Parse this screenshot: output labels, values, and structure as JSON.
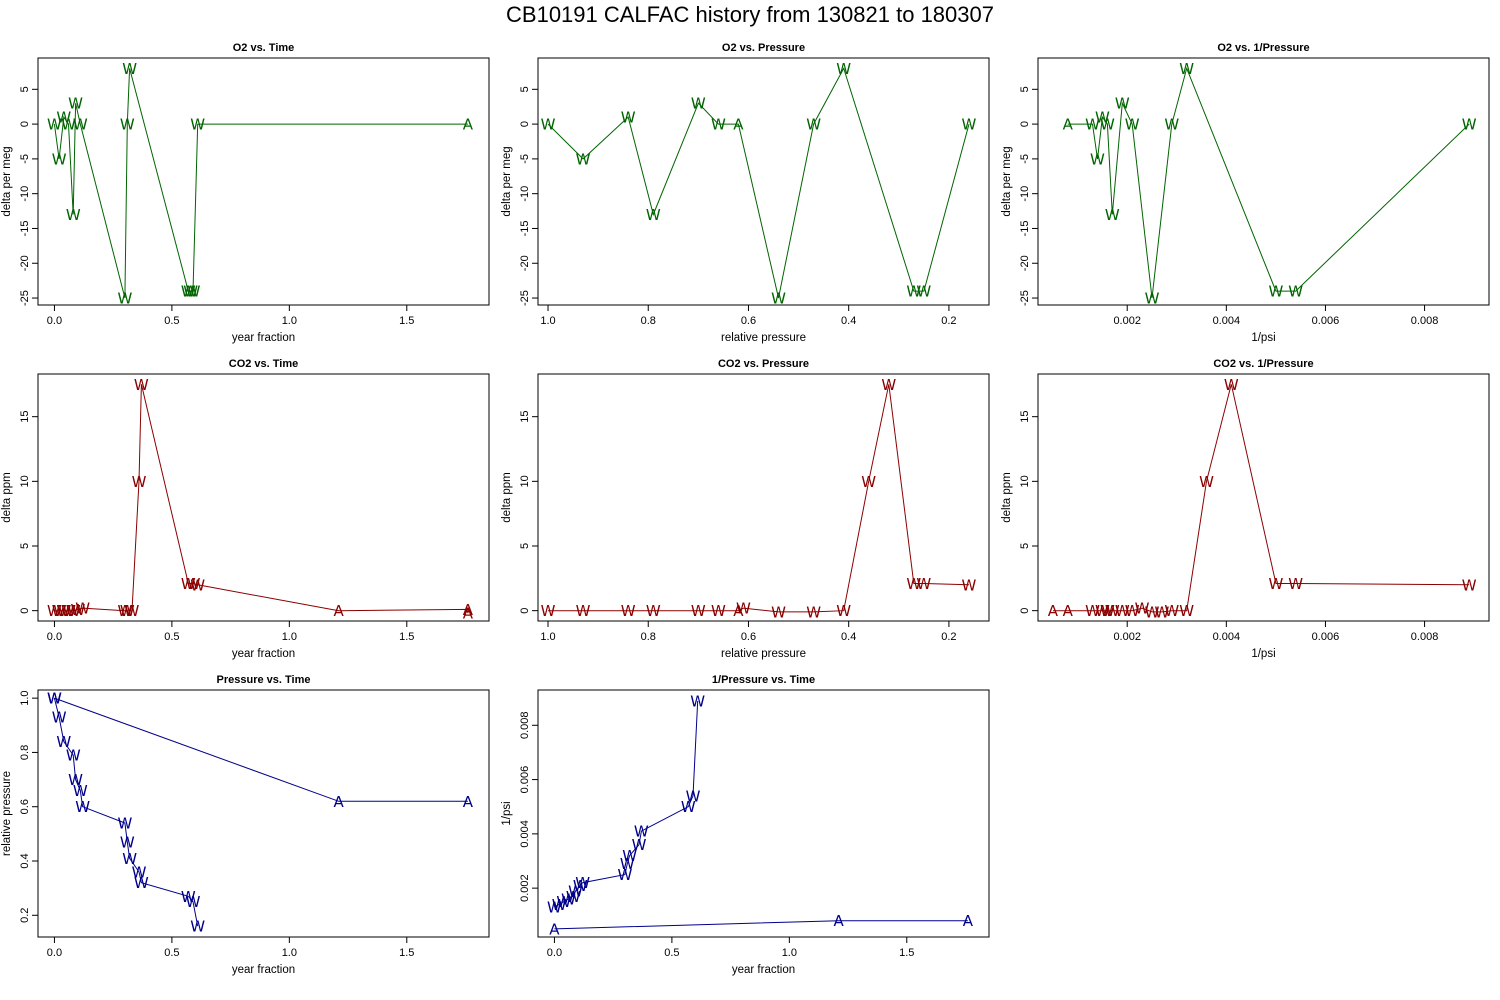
{
  "figure_title": "CB10191   CALFAC history from  130821  to  180307",
  "colors": {
    "o2": "#006400",
    "co2": "#8b0000",
    "pressure": "#00008b",
    "axis": "#000000"
  },
  "chart_data": [
    {
      "type": "line",
      "title": "O2 vs. Time",
      "xlabel": "year fraction",
      "ylabel": "delta per meg",
      "xlim": [
        -0.07,
        1.85
      ],
      "ylim": [
        -26,
        9.5
      ],
      "xticks": [
        {
          "v": 0,
          "t": "0.0"
        },
        {
          "v": 0.5,
          "t": "0.5"
        },
        {
          "v": 1,
          "t": "1.0"
        },
        {
          "v": 1.5,
          "t": "1.5"
        }
      ],
      "yticks": [
        {
          "v": -25,
          "t": "-25"
        },
        {
          "v": -20,
          "t": "-20"
        },
        {
          "v": -15,
          "t": "-15"
        },
        {
          "v": -10,
          "t": "-10"
        },
        {
          "v": -5,
          "t": "-5"
        },
        {
          "v": 0,
          "t": "0"
        },
        {
          "v": 5,
          "t": "5"
        }
      ],
      "color": "o2",
      "points": [
        [
          0.0,
          0,
          "W"
        ],
        [
          0.02,
          -5,
          "W"
        ],
        [
          0.04,
          1,
          "W"
        ],
        [
          0.06,
          0,
          "W"
        ],
        [
          0.08,
          -13,
          "W"
        ],
        [
          0.09,
          3,
          "W"
        ],
        [
          0.11,
          0,
          "W"
        ],
        [
          0.3,
          -25,
          "W"
        ],
        [
          0.31,
          0,
          "W"
        ],
        [
          0.32,
          8,
          "W"
        ],
        [
          0.57,
          -24,
          "W"
        ],
        [
          0.58,
          -24,
          "W"
        ],
        [
          0.59,
          -24,
          "W"
        ],
        [
          0.61,
          0,
          "W"
        ],
        [
          1.76,
          0,
          "A"
        ]
      ]
    },
    {
      "type": "line",
      "title": "O2 vs. Pressure",
      "xlabel": "relative pressure",
      "ylabel": "delta per meg",
      "xlim": [
        1.02,
        0.12
      ],
      "ylim": [
        -26,
        9.5
      ],
      "xticks": [
        {
          "v": 1,
          "t": "1.0"
        },
        {
          "v": 0.8,
          "t": "0.8"
        },
        {
          "v": 0.6,
          "t": "0.6"
        },
        {
          "v": 0.4,
          "t": "0.4"
        },
        {
          "v": 0.2,
          "t": "0.2"
        }
      ],
      "yticks": [
        {
          "v": -25,
          "t": "-25"
        },
        {
          "v": -20,
          "t": "-20"
        },
        {
          "v": -15,
          "t": "-15"
        },
        {
          "v": -10,
          "t": "-10"
        },
        {
          "v": -5,
          "t": "-5"
        },
        {
          "v": 0,
          "t": "0"
        },
        {
          "v": 5,
          "t": "5"
        }
      ],
      "color": "o2",
      "points": [
        [
          1.0,
          0,
          "W"
        ],
        [
          0.93,
          -5,
          "W"
        ],
        [
          0.84,
          1,
          "W"
        ],
        [
          0.79,
          -13,
          "W"
        ],
        [
          0.7,
          3,
          "W"
        ],
        [
          0.66,
          0,
          "W"
        ],
        [
          0.62,
          0,
          "A"
        ],
        [
          0.54,
          -25,
          "W"
        ],
        [
          0.47,
          0,
          "W"
        ],
        [
          0.41,
          8,
          "W"
        ],
        [
          0.27,
          -24,
          "W"
        ],
        [
          0.25,
          -24,
          "W"
        ],
        [
          0.16,
          0,
          "W"
        ]
      ]
    },
    {
      "type": "line",
      "title": "O2 vs. 1/Pressure",
      "xlabel": "1/psi",
      "ylabel": "delta per meg",
      "xlim": [
        0.0002,
        0.0093
      ],
      "ylim": [
        -26,
        9.5
      ],
      "xticks": [
        {
          "v": 0.002,
          "t": "0.002"
        },
        {
          "v": 0.004,
          "t": "0.004"
        },
        {
          "v": 0.006,
          "t": "0.006"
        },
        {
          "v": 0.008,
          "t": "0.008"
        }
      ],
      "yticks": [
        {
          "v": -25,
          "t": "-25"
        },
        {
          "v": -20,
          "t": "-20"
        },
        {
          "v": -15,
          "t": "-15"
        },
        {
          "v": -10,
          "t": "-10"
        },
        {
          "v": -5,
          "t": "-5"
        },
        {
          "v": 0,
          "t": "0"
        },
        {
          "v": 5,
          "t": "5"
        }
      ],
      "color": "o2",
      "points": [
        [
          0.0008,
          0,
          "A"
        ],
        [
          0.0013,
          0,
          "W"
        ],
        [
          0.0014,
          -5,
          "W"
        ],
        [
          0.0015,
          1,
          "W"
        ],
        [
          0.0016,
          0,
          "W"
        ],
        [
          0.0017,
          -13,
          "W"
        ],
        [
          0.0019,
          3,
          "W"
        ],
        [
          0.0021,
          0,
          "W"
        ],
        [
          0.0025,
          -25,
          "W"
        ],
        [
          0.0029,
          0,
          "W"
        ],
        [
          0.0032,
          8,
          "W"
        ],
        [
          0.005,
          -24,
          "W"
        ],
        [
          0.0054,
          -24,
          "W"
        ],
        [
          0.0089,
          0,
          "W"
        ]
      ]
    },
    {
      "type": "line",
      "title": "CO2 vs. Time",
      "xlabel": "year fraction",
      "ylabel": "delta ppm",
      "xlim": [
        -0.07,
        1.85
      ],
      "ylim": [
        -0.8,
        18.3
      ],
      "xticks": [
        {
          "v": 0,
          "t": "0.0"
        },
        {
          "v": 0.5,
          "t": "0.5"
        },
        {
          "v": 1,
          "t": "1.0"
        },
        {
          "v": 1.5,
          "t": "1.5"
        }
      ],
      "yticks": [
        {
          "v": 0,
          "t": "0"
        },
        {
          "v": 5,
          "t": "5"
        },
        {
          "v": 10,
          "t": "10"
        },
        {
          "v": 15,
          "t": "15"
        }
      ],
      "color": "co2",
      "points": [
        [
          0.0,
          0,
          "W"
        ],
        [
          0.02,
          0,
          "W"
        ],
        [
          0.04,
          0,
          "W"
        ],
        [
          0.06,
          0,
          "W"
        ],
        [
          0.08,
          0,
          "W"
        ],
        [
          0.1,
          0.1,
          "W"
        ],
        [
          0.12,
          0.2,
          "W"
        ],
        [
          0.3,
          0,
          "W"
        ],
        [
          0.31,
          0,
          "W"
        ],
        [
          0.33,
          0,
          "W"
        ],
        [
          0.36,
          10,
          "W"
        ],
        [
          0.37,
          17.5,
          "W"
        ],
        [
          0.57,
          2.1,
          "W"
        ],
        [
          0.59,
          2.1,
          "W"
        ],
        [
          0.61,
          2,
          "W"
        ],
        [
          1.21,
          0,
          "A"
        ],
        [
          1.76,
          0.1,
          "A"
        ],
        [
          1.76,
          -0.2,
          "A"
        ]
      ]
    },
    {
      "type": "line",
      "title": "CO2 vs. Pressure",
      "xlabel": "relative pressure",
      "ylabel": "delta ppm",
      "xlim": [
        1.02,
        0.12
      ],
      "ylim": [
        -0.8,
        18.3
      ],
      "xticks": [
        {
          "v": 1,
          "t": "1.0"
        },
        {
          "v": 0.8,
          "t": "0.8"
        },
        {
          "v": 0.6,
          "t": "0.6"
        },
        {
          "v": 0.4,
          "t": "0.4"
        },
        {
          "v": 0.2,
          "t": "0.2"
        }
      ],
      "yticks": [
        {
          "v": 0,
          "t": "0"
        },
        {
          "v": 5,
          "t": "5"
        },
        {
          "v": 10,
          "t": "10"
        },
        {
          "v": 15,
          "t": "15"
        }
      ],
      "color": "co2",
      "points": [
        [
          1.0,
          0,
          "W"
        ],
        [
          0.93,
          0,
          "W"
        ],
        [
          0.84,
          0,
          "W"
        ],
        [
          0.79,
          0,
          "W"
        ],
        [
          0.7,
          0,
          "W"
        ],
        [
          0.66,
          0,
          "W"
        ],
        [
          0.62,
          0,
          "A"
        ],
        [
          0.61,
          0.2,
          "W"
        ],
        [
          0.54,
          -0.1,
          "W"
        ],
        [
          0.47,
          -0.1,
          "W"
        ],
        [
          0.41,
          0,
          "W"
        ],
        [
          0.36,
          10,
          "W"
        ],
        [
          0.32,
          17.5,
          "W"
        ],
        [
          0.27,
          2.1,
          "W"
        ],
        [
          0.25,
          2.1,
          "W"
        ],
        [
          0.16,
          2,
          "W"
        ]
      ]
    },
    {
      "type": "line",
      "title": "CO2 vs. 1/Pressure",
      "xlabel": "1/psi",
      "ylabel": "delta ppm",
      "xlim": [
        0.0002,
        0.0093
      ],
      "ylim": [
        -0.8,
        18.3
      ],
      "xticks": [
        {
          "v": 0.002,
          "t": "0.002"
        },
        {
          "v": 0.004,
          "t": "0.004"
        },
        {
          "v": 0.006,
          "t": "0.006"
        },
        {
          "v": 0.008,
          "t": "0.008"
        }
      ],
      "yticks": [
        {
          "v": 0,
          "t": "0"
        },
        {
          "v": 5,
          "t": "5"
        },
        {
          "v": 10,
          "t": "10"
        },
        {
          "v": 15,
          "t": "15"
        }
      ],
      "color": "co2",
      "points": [
        [
          0.0005,
          0,
          "A"
        ],
        [
          0.0008,
          0,
          "A"
        ],
        [
          0.0013,
          0,
          "W"
        ],
        [
          0.0015,
          0,
          "W"
        ],
        [
          0.0016,
          0,
          "W"
        ],
        [
          0.0017,
          0,
          "W"
        ],
        [
          0.0019,
          0,
          "W"
        ],
        [
          0.0021,
          0,
          "W"
        ],
        [
          0.0023,
          0.2,
          "W"
        ],
        [
          0.0025,
          -0.1,
          "W"
        ],
        [
          0.0027,
          -0.1,
          "W"
        ],
        [
          0.0029,
          0,
          "W"
        ],
        [
          0.0032,
          0,
          "W"
        ],
        [
          0.0036,
          10,
          "W"
        ],
        [
          0.0041,
          17.5,
          "W"
        ],
        [
          0.005,
          2.1,
          "W"
        ],
        [
          0.0054,
          2.1,
          "W"
        ],
        [
          0.0089,
          2,
          "W"
        ]
      ]
    },
    {
      "type": "line",
      "title": "Pressure vs. Time",
      "xlabel": "year fraction",
      "ylabel": "relative pressure",
      "xlim": [
        -0.07,
        1.85
      ],
      "ylim": [
        0.12,
        1.03
      ],
      "xticks": [
        {
          "v": 0,
          "t": "0.0"
        },
        {
          "v": 0.5,
          "t": "0.5"
        },
        {
          "v": 1,
          "t": "1.0"
        },
        {
          "v": 1.5,
          "t": "1.5"
        }
      ],
      "yticks": [
        {
          "v": 0.2,
          "t": "0.2"
        },
        {
          "v": 0.4,
          "t": "0.4"
        },
        {
          "v": 0.6,
          "t": "0.6"
        },
        {
          "v": 0.8,
          "t": "0.8"
        },
        {
          "v": 1,
          "t": "1.0"
        }
      ],
      "color": "pressure",
      "points": [
        [
          0.0,
          1.0,
          "W"
        ],
        [
          0.02,
          0.93,
          "W"
        ],
        [
          0.04,
          0.84,
          "W"
        ],
        [
          0.08,
          0.79,
          "W"
        ],
        [
          0.09,
          0.7,
          "W"
        ],
        [
          0.11,
          0.66,
          "W"
        ],
        [
          0.12,
          0.6,
          "W"
        ],
        [
          0.3,
          0.54,
          "W"
        ],
        [
          0.31,
          0.47,
          "W"
        ],
        [
          0.32,
          0.41,
          "W"
        ],
        [
          0.36,
          0.36,
          "W"
        ],
        [
          0.37,
          0.32,
          "W"
        ],
        [
          0.57,
          0.27,
          "W"
        ],
        [
          0.59,
          0.25,
          "W"
        ],
        [
          0.61,
          0.16,
          "W"
        ]
      ],
      "points2": [
        [
          0.0,
          1.0,
          "W"
        ],
        [
          1.21,
          0.62,
          "A"
        ],
        [
          1.76,
          0.62,
          "A"
        ]
      ]
    },
    {
      "type": "line",
      "title": "1/Pressure vs. Time",
      "xlabel": "year fraction",
      "ylabel": "1/psi",
      "xlim": [
        -0.07,
        1.85
      ],
      "ylim": [
        0.0002,
        0.0093
      ],
      "xticks": [
        {
          "v": 0,
          "t": "0.0"
        },
        {
          "v": 0.5,
          "t": "0.5"
        },
        {
          "v": 1,
          "t": "1.0"
        },
        {
          "v": 1.5,
          "t": "1.5"
        }
      ],
      "yticks": [
        {
          "v": 0.002,
          "t": "0.002"
        },
        {
          "v": 0.004,
          "t": "0.004"
        },
        {
          "v": 0.006,
          "t": "0.006"
        },
        {
          "v": 0.008,
          "t": "0.008"
        }
      ],
      "color": "pressure",
      "points": [
        [
          0.0,
          0.0013,
          "W"
        ],
        [
          0.02,
          0.0014,
          "W"
        ],
        [
          0.04,
          0.0015,
          "W"
        ],
        [
          0.06,
          0.0016,
          "W"
        ],
        [
          0.08,
          0.0017,
          "W"
        ],
        [
          0.09,
          0.0019,
          "W"
        ],
        [
          0.11,
          0.0021,
          "W"
        ],
        [
          0.12,
          0.0022,
          "W"
        ],
        [
          0.3,
          0.0025,
          "W"
        ],
        [
          0.31,
          0.0029,
          "W"
        ],
        [
          0.32,
          0.0032,
          "W"
        ],
        [
          0.36,
          0.0036,
          "W"
        ],
        [
          0.37,
          0.0041,
          "W"
        ],
        [
          0.57,
          0.005,
          "W"
        ],
        [
          0.59,
          0.0054,
          "W"
        ],
        [
          0.61,
          0.0089,
          "W"
        ]
      ],
      "points2": [
        [
          0.0,
          0.0005,
          "A"
        ],
        [
          1.21,
          0.0008,
          "A"
        ],
        [
          1.76,
          0.0008,
          "A"
        ]
      ]
    }
  ]
}
